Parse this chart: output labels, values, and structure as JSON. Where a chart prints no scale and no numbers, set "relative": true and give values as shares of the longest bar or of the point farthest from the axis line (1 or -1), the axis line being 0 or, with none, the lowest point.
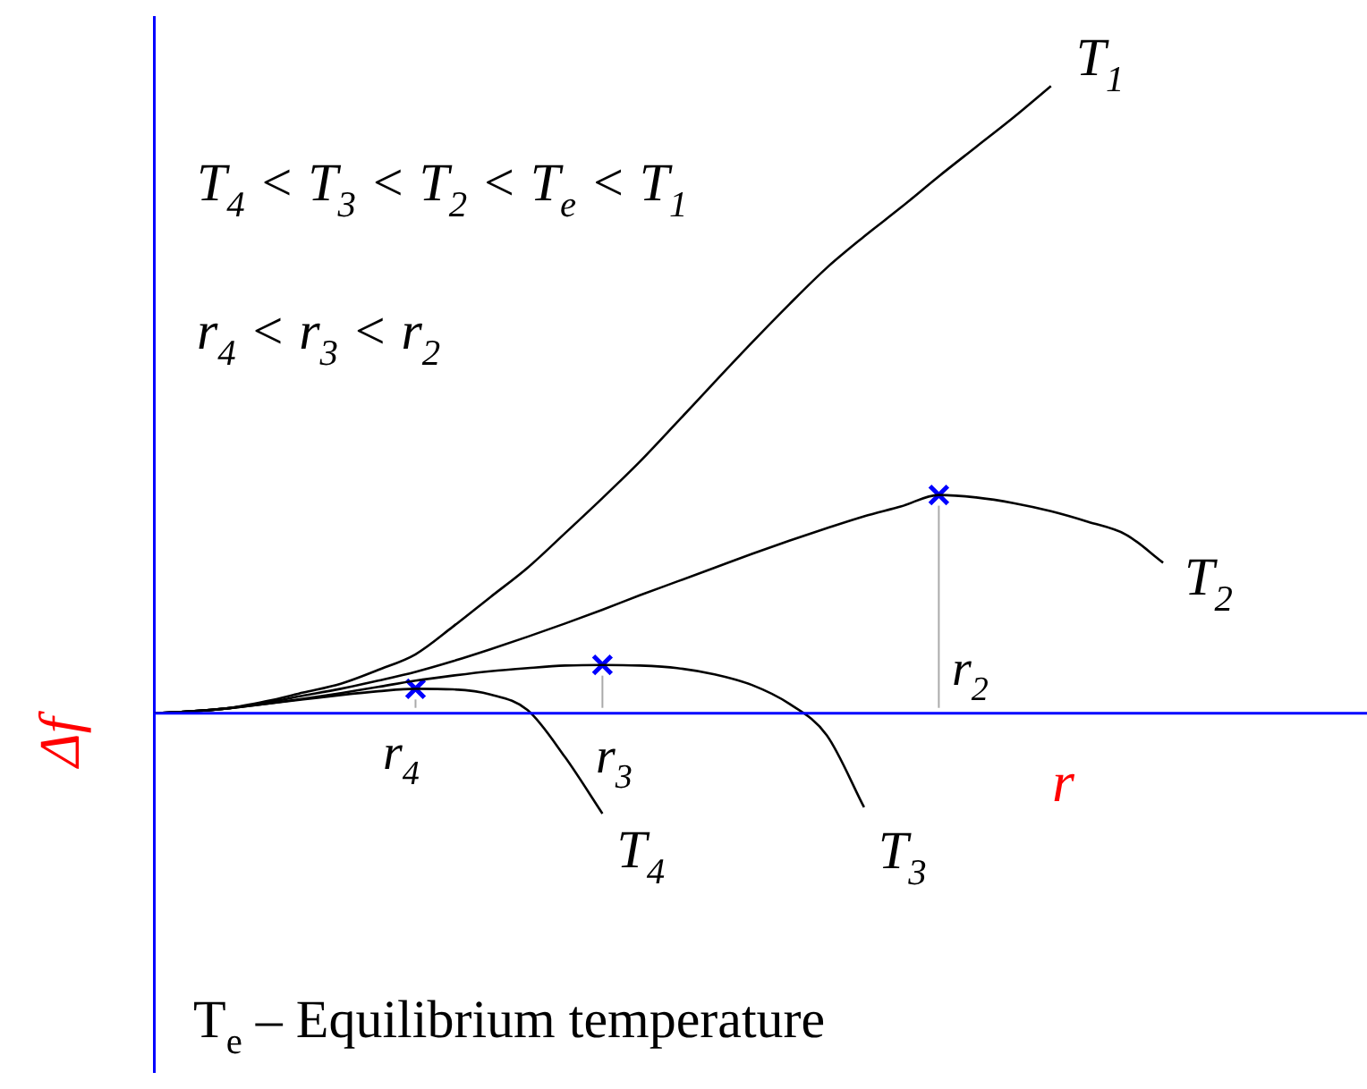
{
  "chart_data": {
    "type": "line",
    "relative": true,
    "xlabel": "r",
    "ylabel": "Δf",
    "legend": false,
    "ref_lines": [
      {
        "axis": "y",
        "value": 0,
        "color": "#0000ff"
      }
    ],
    "categories": [
      null,
      null,
      null,
      null,
      null,
      null,
      null,
      null,
      null,
      null,
      null,
      null,
      null,
      null,
      null,
      null,
      null,
      null,
      null,
      null,
      null,
      null,
      null,
      null,
      null,
      null,
      null,
      null,
      null,
      null,
      null,
      null,
      null
    ],
    "series": [
      {
        "name": "T$_{1}$",
        "color": "#000000",
        "marker": "none",
        "line_style": "solid",
        "values": [
          0,
          0.003,
          0.008,
          0.019,
          0.033,
          0.047,
          0.069,
          0.094,
          0.138,
          0.185,
          0.232,
          0.287,
          0.343,
          0.401,
          0.464,
          0.528,
          0.591,
          0.652,
          0.71,
          0.76,
          0.807,
          0.856,
          0.903,
          0.95,
          1,
          null,
          null,
          null,
          null,
          null,
          null,
          null,
          null
        ]
      },
      {
        "name": "T$_{2}$",
        "color": "#000000",
        "marker": "none",
        "line_style": "solid",
        "values": [
          0,
          0.003,
          0.008,
          0.017,
          0.028,
          0.039,
          0.052,
          0.066,
          0.083,
          0.102,
          0.122,
          0.143,
          0.165,
          0.188,
          0.21,
          0.232,
          0.254,
          0.275,
          0.295,
          0.314,
          0.33,
          0.348,
          0.344,
          0.335,
          0.322,
          0.305,
          0.285,
          0.24,
          null,
          null,
          null,
          null,
          null
        ]
      },
      {
        "name": "T$_{3}$",
        "color": "#000000",
        "marker": "none",
        "line_style": "solid",
        "values": [
          0,
          0.003,
          0.008,
          0.015,
          0.023,
          0.032,
          0.042,
          0.052,
          0.06,
          0.067,
          0.072,
          0.076,
          0.077,
          0.076,
          0.072,
          0.062,
          0.045,
          0.015,
          -0.035,
          -0.15,
          null,
          null,
          null,
          null,
          null,
          null,
          null,
          null,
          null,
          null,
          null,
          null,
          null
        ]
      },
      {
        "name": "T$_{4}$",
        "color": "#000000",
        "marker": "none",
        "line_style": "solid",
        "values": [
          0,
          0.003,
          0.008,
          0.015,
          0.022,
          0.029,
          0.035,
          0.039,
          0.038,
          0.03,
          0.005,
          -0.07,
          -0.16,
          null,
          null,
          null,
          null,
          null,
          null,
          null,
          null,
          null,
          null,
          null,
          null,
          null,
          null,
          null,
          null,
          null,
          null,
          null,
          null
        ]
      },
      {
        "color": "#0000ff",
        "marker": "cross",
        "line_style": "none",
        "values": [
          null,
          null,
          null,
          null,
          null,
          null,
          null,
          0.039,
          null,
          null,
          null,
          null,
          0.077,
          null,
          null,
          null,
          null,
          null,
          null,
          null,
          null,
          0.348,
          null,
          null,
          null,
          null,
          null,
          null,
          null,
          null,
          null,
          null,
          null
        ]
      }
    ],
    "annotations": [
      "T$_{4}$ < T$_{3}$ < T$_{2}$ < T$_{e}$ < T$_{1}$",
      "r$_{4}$ < r$_{3}$ < r$_{2}$",
      "T$_{e}$ – Equilibrium temperature",
      "r$_{4}$",
      "r$_{3}$",
      "r$_{2}$"
    ]
  }
}
